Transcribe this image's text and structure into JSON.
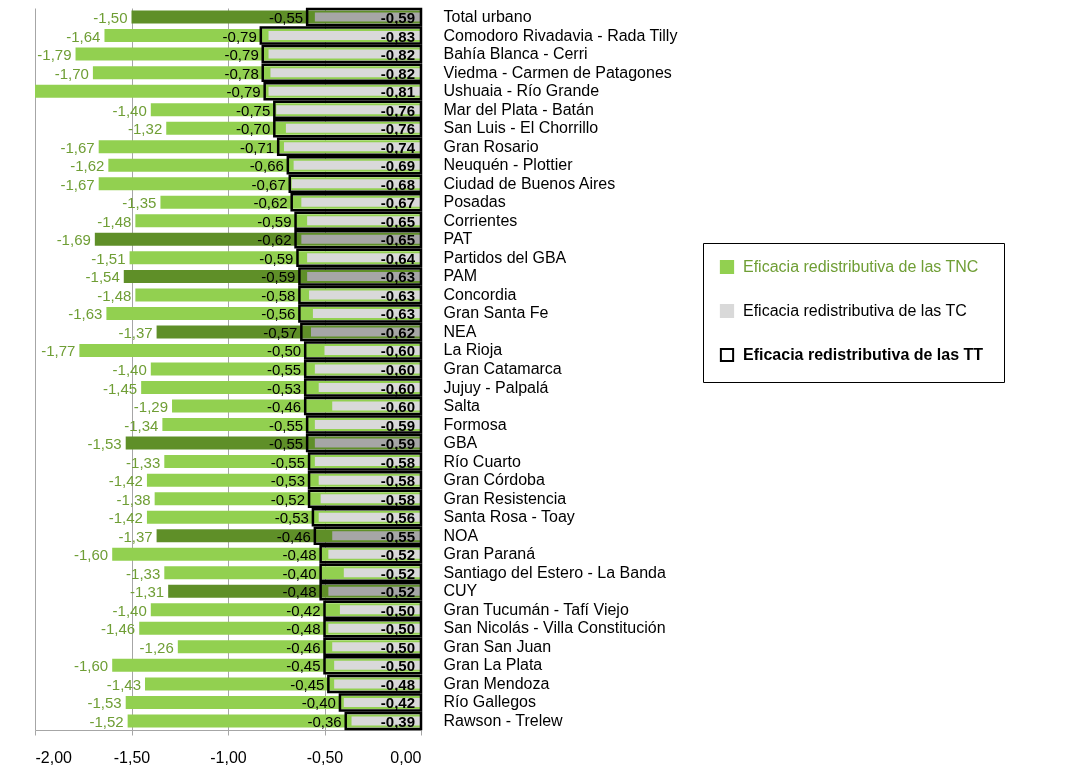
{
  "chart_data": {
    "type": "bar",
    "orientation": "horizontal",
    "categories": [
      "Total urbano",
      "Comodoro Rivadavia - Rada Tilly",
      "Bahía Blanca - Cerri",
      "Viedma - Carmen de Patagones",
      "Ushuaia - Río Grande",
      "Mar del Plata - Batán",
      "San Luis - El Chorrillo",
      "Gran Rosario",
      "Neuquén - Plottier",
      "Ciudad de Buenos Aires",
      "Posadas",
      "Corrientes",
      "PAT",
      "Partidos del GBA",
      "PAM",
      "Concordia",
      "Gran Santa Fe",
      "NEA",
      "La Rioja",
      "Gran Catamarca",
      "Jujuy - Palpalá",
      "Salta",
      "Formosa",
      "GBA",
      "Río Cuarto",
      "Gran Córdoba",
      "Gran Resistencia",
      "Santa Rosa - Toay",
      "NOA",
      "Gran Paraná",
      "Santiago del Estero - La Banda",
      "CUY",
      "Gran Tucumán - Tafí Viejo",
      "San Nicolás - Villa Constitución",
      "Gran San Juan",
      "Gran La Plata",
      "Gran Mendoza",
      "Río Gallegos",
      "Rawson - Trelew"
    ],
    "series": [
      {
        "name": "Eficacia redistributiva de las  TNC",
        "color": "#92d050",
        "colors": [
          "#5f8f28",
          "#92d050",
          "#92d050",
          "#92d050",
          "#92d050",
          "#92d050",
          "#92d050",
          "#92d050",
          "#92d050",
          "#92d050",
          "#92d050",
          "#92d050",
          "#5f8f28",
          "#92d050",
          "#5f8f28",
          "#92d050",
          "#92d050",
          "#5f8f28",
          "#92d050",
          "#92d050",
          "#92d050",
          "#92d050",
          "#92d050",
          "#5f8f28",
          "#92d050",
          "#92d050",
          "#92d050",
          "#92d050",
          "#5f8f28",
          "#92d050",
          "#92d050",
          "#5f8f28",
          "#92d050",
          "#92d050",
          "#92d050",
          "#92d050",
          "#92d050",
          "#92d050",
          "#92d050"
        ],
        "values": [
          -1.5,
          -1.64,
          -1.79,
          -1.7,
          -2.0,
          -1.4,
          -1.32,
          -1.67,
          -1.62,
          -1.67,
          -1.35,
          -1.48,
          -1.69,
          -1.51,
          -1.54,
          -1.48,
          -1.63,
          -1.37,
          -1.77,
          -1.4,
          -1.45,
          -1.29,
          -1.34,
          -1.53,
          -1.33,
          -1.42,
          -1.38,
          -1.42,
          -1.37,
          -1.6,
          -1.33,
          -1.31,
          -1.4,
          -1.46,
          -1.26,
          -1.6,
          -1.43,
          -1.53,
          -1.52
        ],
        "value_labels": [
          "-1,50",
          "-1,64",
          "-1,79",
          "-1,70",
          null,
          "-1,40",
          "-1,32",
          "-1,67",
          "-1,62",
          "-1,67",
          "-1,35",
          "-1,48",
          "-1,69",
          "-1,51",
          "-1,54",
          "-1,48",
          "-1,63",
          "-1,37",
          "-1,77",
          "-1,40",
          "-1,45",
          "-1,29",
          "-1,34",
          "-1,53",
          "-1,33",
          "-1,42",
          "-1,38",
          "-1,42",
          "-1,37",
          "-1,60",
          "-1,33",
          "-1,31",
          "-1,40",
          "-1,46",
          "-1,26",
          "-1,60",
          "-1,43",
          "-1,53",
          "-1,52"
        ]
      },
      {
        "name": "Eficacia redistributiva de las  TC",
        "color": "#d9d9d9",
        "colors": [
          "#a6a6a6",
          "#d9d9d9",
          "#d9d9d9",
          "#d9d9d9",
          "#d9d9d9",
          "#d9d9d9",
          "#d9d9d9",
          "#d9d9d9",
          "#d9d9d9",
          "#d9d9d9",
          "#d9d9d9",
          "#d9d9d9",
          "#a6a6a6",
          "#d9d9d9",
          "#a6a6a6",
          "#d9d9d9",
          "#d9d9d9",
          "#a6a6a6",
          "#d9d9d9",
          "#d9d9d9",
          "#d9d9d9",
          "#d9d9d9",
          "#d9d9d9",
          "#a6a6a6",
          "#d9d9d9",
          "#d9d9d9",
          "#d9d9d9",
          "#d9d9d9",
          "#a6a6a6",
          "#d9d9d9",
          "#d9d9d9",
          "#a6a6a6",
          "#d9d9d9",
          "#d9d9d9",
          "#d9d9d9",
          "#d9d9d9",
          "#d9d9d9",
          "#d9d9d9",
          "#d9d9d9"
        ],
        "values": [
          -0.55,
          -0.79,
          -0.79,
          -0.78,
          -0.79,
          -0.75,
          -0.7,
          -0.71,
          -0.66,
          -0.67,
          -0.62,
          -0.59,
          -0.62,
          -0.59,
          -0.59,
          -0.58,
          -0.56,
          -0.57,
          -0.5,
          -0.55,
          -0.53,
          -0.46,
          -0.55,
          -0.55,
          -0.55,
          -0.53,
          -0.52,
          -0.53,
          -0.46,
          -0.48,
          -0.4,
          -0.48,
          -0.42,
          -0.48,
          -0.46,
          -0.45,
          -0.45,
          -0.4,
          -0.36
        ],
        "value_labels": [
          "-0,55",
          "-0,79",
          "-0,79",
          "-0,78",
          "-0,79",
          "-0,75",
          "-0,70",
          "-0,71",
          "-0,66",
          "-0,67",
          "-0,62",
          "-0,59",
          "-0,62",
          "-0,59",
          "-0,59",
          "-0,58",
          "-0,56",
          "-0,57",
          "-0,50",
          "-0,55",
          "-0,53",
          "-0,46",
          "-0,55",
          "-0,55",
          "-0,55",
          "-0,53",
          "-0,52",
          "-0,53",
          "-0,46",
          "-0,48",
          "-0,40",
          "-0,48",
          "-0,42",
          "-0,48",
          "-0,46",
          "-0,45",
          "-0,45",
          "-0,40",
          "-0,36"
        ]
      },
      {
        "name": "Eficacia redistributiva de las  TT",
        "color": "#000000",
        "values": [
          -0.59,
          -0.83,
          -0.82,
          -0.82,
          -0.81,
          -0.76,
          -0.76,
          -0.74,
          -0.69,
          -0.68,
          -0.67,
          -0.65,
          -0.65,
          -0.64,
          -0.63,
          -0.63,
          -0.63,
          -0.62,
          -0.6,
          -0.6,
          -0.6,
          -0.6,
          -0.59,
          -0.59,
          -0.58,
          -0.58,
          -0.58,
          -0.56,
          -0.55,
          -0.52,
          -0.52,
          -0.52,
          -0.5,
          -0.5,
          -0.5,
          -0.5,
          -0.48,
          -0.42,
          -0.39
        ],
        "value_labels": [
          "-0,59",
          "-0,83",
          "-0,82",
          "-0,82",
          "-0,81",
          "-0,76",
          "-0,76",
          "-0,74",
          "-0,69",
          "-0,68",
          "-0,67",
          "-0,65",
          "-0,65",
          "-0,64",
          "-0,63",
          "-0,63",
          "-0,63",
          "-0,62",
          "-0,60",
          "-0,60",
          "-0,60",
          "-0,60",
          "-0,59",
          "-0,59",
          "-0,58",
          "-0,58",
          "-0,58",
          "-0,56",
          "-0,55",
          "-0,52",
          "-0,52",
          "-0,52",
          "-0,50",
          "-0,50",
          "-0,50",
          "-0,50",
          "-0,48",
          "-0,42",
          "-0,39"
        ]
      }
    ],
    "xlim": [
      -2.0,
      0.0
    ],
    "xticks": [
      {
        "value": -2.0,
        "label": "-2,00"
      },
      {
        "value": -1.5,
        "label": "-1,50"
      },
      {
        "value": -1.0,
        "label": "-1,00"
      },
      {
        "value": -0.5,
        "label": "-0,50"
      },
      {
        "value": 0.0,
        "label": "0,00"
      }
    ],
    "grid": "x",
    "legend": "right"
  }
}
